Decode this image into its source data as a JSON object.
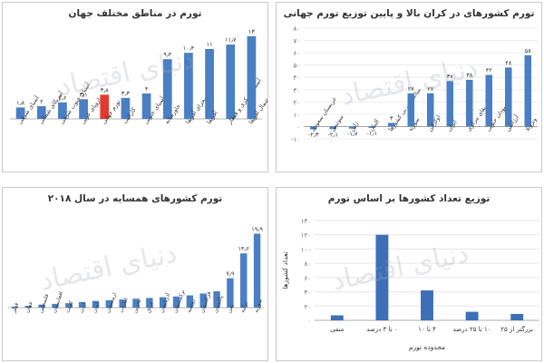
{
  "watermark": "دنیای اقتصاد",
  "chart_data": [
    {
      "id": "regions",
      "type": "bar",
      "title": "تورم در مناطق مختلف جهان",
      "categories": [
        "آسیای شرقی",
        "آمریکای شمالی",
        "آسیای جنوب شرقی",
        "اروپای غربی",
        "تورم جهانی",
        "کارائیب",
        "آسیای جنوبی",
        "خاورمیانه",
        "صحرای آفریقا",
        "آفریقا",
        "آسیای مرکزی و قفقاز",
        "شمال آفریقا"
      ],
      "values": [
        1.8,
        2.0,
        2.6,
        3.1,
        3.8,
        3.3,
        4.0,
        9.4,
        10.4,
        11.0,
        11.7,
        13.0
      ],
      "value_labels": [
        "۱٫۸",
        "۲",
        "۲٫۶",
        "۳٫۱",
        "۳٫۸",
        "۳٫۳",
        "۴",
        "۹٫۴",
        "۱۰٫۴",
        "۱۱",
        "۱۱٫۷",
        "۱۳"
      ],
      "highlight_index": 4,
      "colors": {
        "bar": "#4a7fc4",
        "highlight": "#e23b2e"
      },
      "ylim": [
        0,
        14
      ]
    },
    {
      "id": "top_bottom",
      "type": "bar",
      "title": "تورم کشورهای در کران بالا و پایین توزیع تورم جهانی",
      "categories": [
        "عربستان سعودی",
        "سوئیس",
        "ژاپن",
        "آلمان",
        "میانگین وزنی کشورها",
        "سوریه",
        "اوکراین",
        "ایران",
        "آفریقای مرکزی",
        "سودان جنوبی",
        "آرژانتین",
        "ونزوئلا"
      ],
      "values": [
        -2.3,
        -2.1,
        -1.7,
        -1.1,
        3.0,
        27.0,
        27.0,
        37.0,
        38.0,
        42.0,
        48.0,
        58.0
      ],
      "value_labels": [
        "-۲٫۳",
        "-۲٫۱",
        "-۱٫۷",
        "-۱٫۱",
        "۳",
        "۲۷",
        "۲۷",
        "۳۷",
        "۳۸",
        "۴۲",
        "۴۸",
        "۵۸"
      ],
      "colors": {
        "bar": "#4a7fc4"
      },
      "yticks": [
        -10,
        0,
        10,
        20,
        30,
        40,
        50,
        60,
        70,
        80
      ],
      "ytick_labels": [
        "-۱۰",
        "۰",
        "۱۰",
        "۲۰",
        "۳۰",
        "۴۰",
        "۵۰",
        "۶۰",
        "۷۰",
        "۸۰"
      ],
      "ylim": [
        -10,
        80
      ]
    },
    {
      "id": "neighbors",
      "type": "bar",
      "title": "تورم کشورهای همسایه در سال ۲۰۱۸",
      "categories": [
        "قطر",
        "عمان",
        "فلسطین",
        "افغانستان",
        "کویت",
        "اردن",
        "لبنان",
        "ارمنستان",
        "امارات",
        "بحرین",
        "عراق",
        "آذربایجان",
        "ترکمنستان",
        "روسیه",
        "قزاقستان",
        "پاکستان",
        "یمن",
        "ترکیه",
        "سوریه"
      ],
      "values": [
        0.3,
        0.5,
        0.8,
        1.0,
        1.2,
        1.5,
        1.8,
        2.0,
        2.2,
        2.4,
        2.6,
        2.8,
        3.0,
        3.3,
        3.8,
        4.4,
        7.9,
        14.6,
        19.9
      ],
      "value_labels": [
        "",
        "",
        "",
        "",
        "",
        "",
        "",
        "",
        "",
        "",
        "",
        "",
        "",
        "",
        "",
        "",
        "۷٫۹",
        "۱۴٫۶",
        "۱۹٫۹"
      ],
      "colors": {
        "bar": "#4a7fc4"
      },
      "ylim": [
        0,
        21
      ]
    },
    {
      "id": "distribution",
      "type": "bar",
      "title": "توزیع تعداد کشورها بر اساس تورم",
      "categories": [
        "منفی",
        "۰ تا ۳ درصد",
        "۴ تا ۱۰",
        "۱۰ تا ۲۵ درصد",
        "بزرگتر از ۲۵"
      ],
      "values": [
        7,
        120,
        42,
        12,
        9
      ],
      "xlabel": "محدوده تورم",
      "ylabel": "تعداد کشورها",
      "yticks": [
        0,
        20,
        40,
        60,
        80,
        100,
        120,
        140
      ],
      "ytick_labels": [
        "۰",
        "۲۰",
        "۴۰",
        "۶۰",
        "۸۰",
        "۱۰۰",
        "۱۲۰",
        "۱۴۰"
      ],
      "colors": {
        "bar": "#3d6fb6",
        "grid": "#e3e3e3"
      },
      "ylim": [
        0,
        140
      ]
    }
  ]
}
